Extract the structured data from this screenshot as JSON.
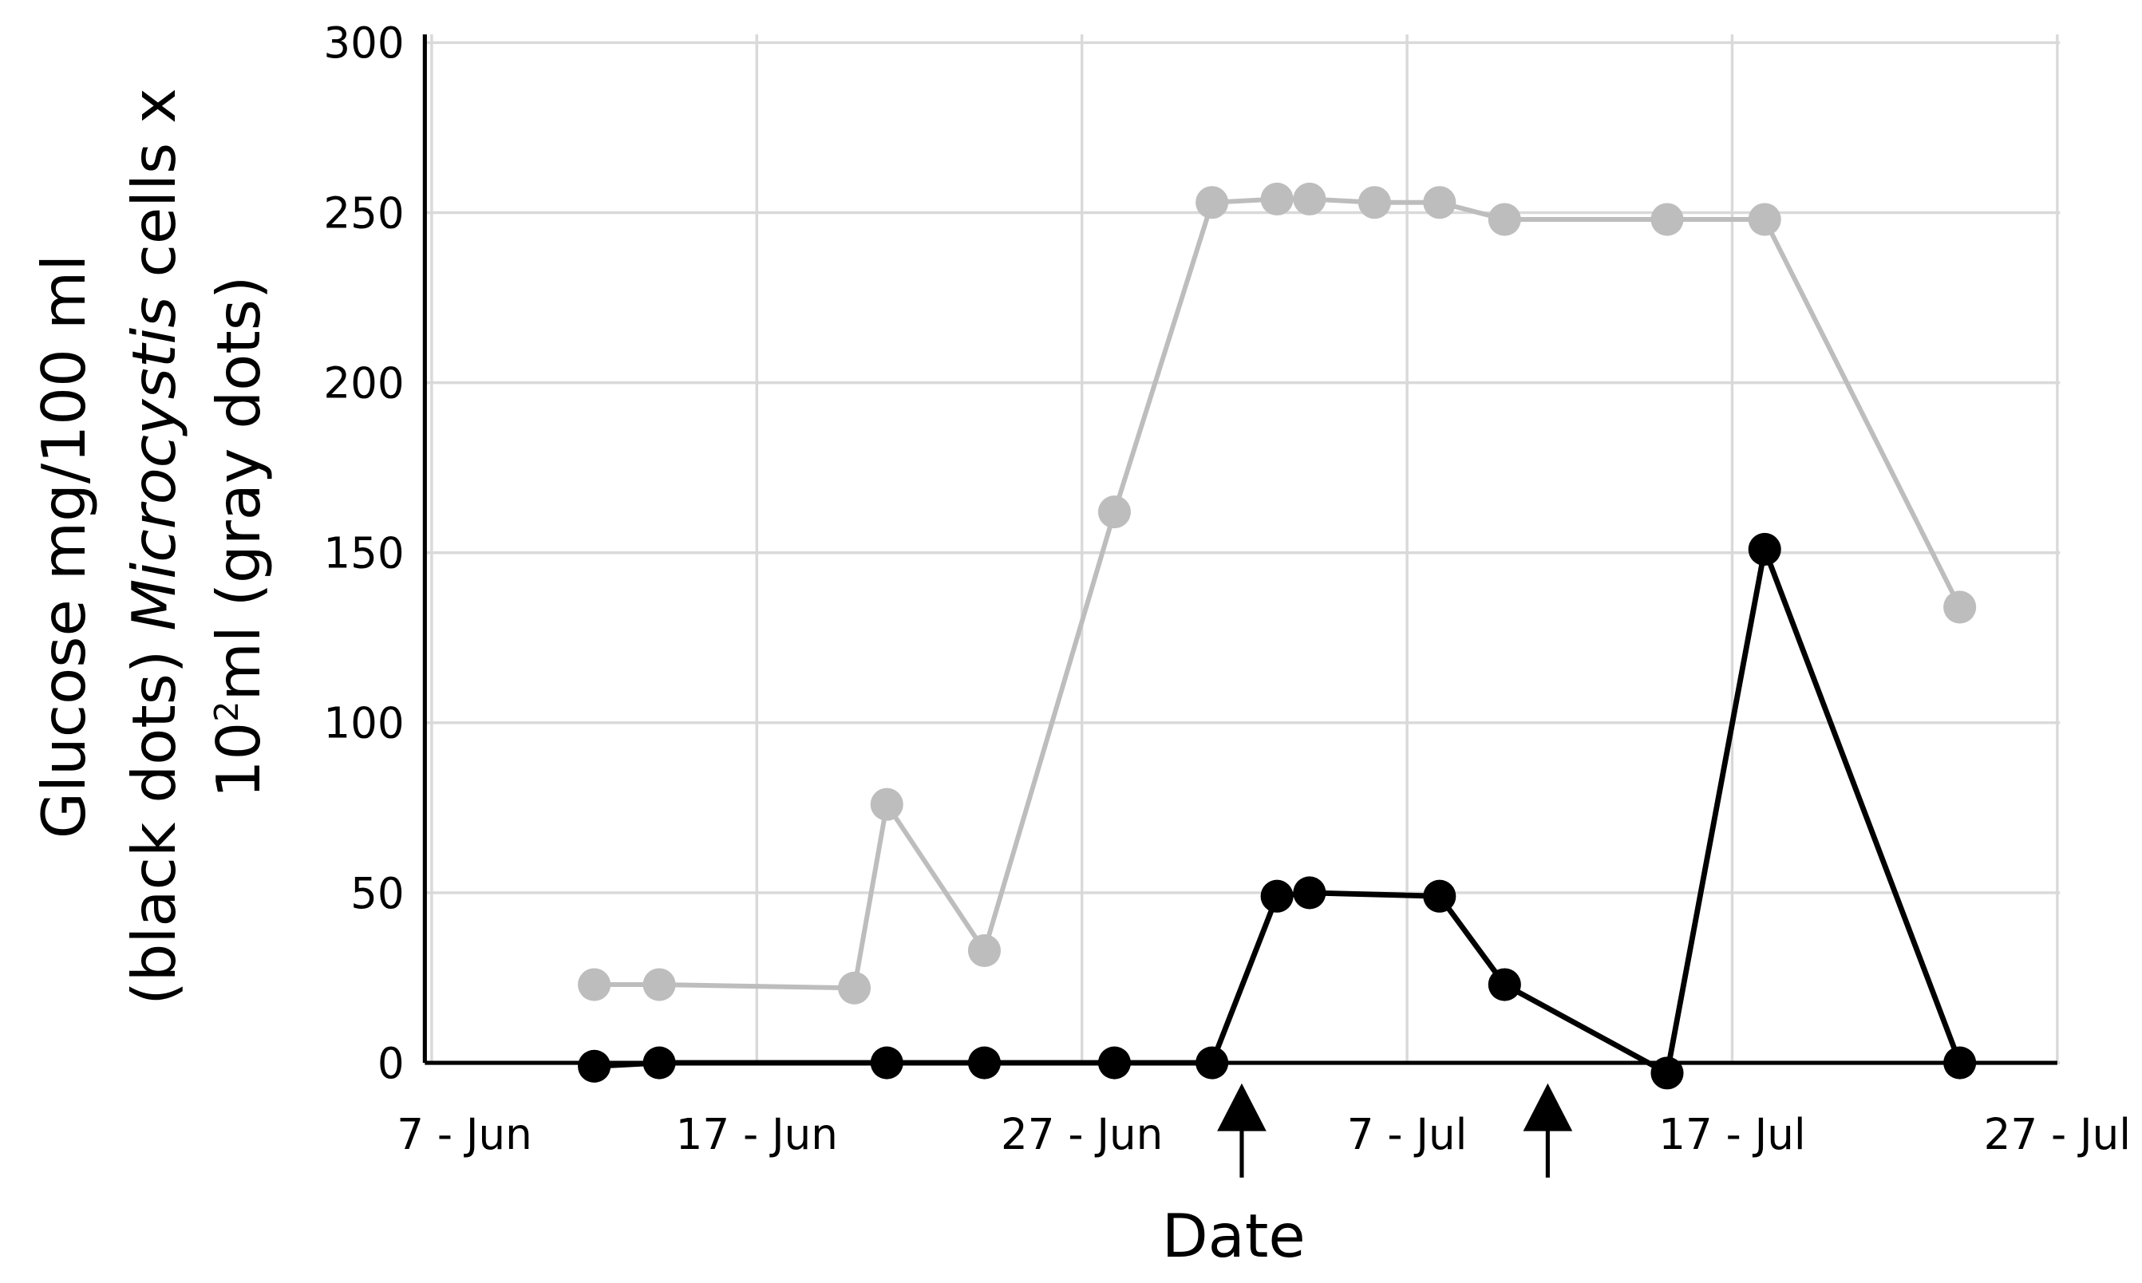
{
  "chart_data": {
    "type": "line",
    "xlabel": "Date",
    "ylabel": [
      "Glucose mg/100 ml",
      "(black dots)",
      "Microcystis",
      "cells x",
      "10",
      "2",
      "ml (gray dots)"
    ],
    "xlim": [
      "7 - Jun",
      "27 - Jul"
    ],
    "xticks": [
      "7 - Jun",
      "17 - Jun",
      "27 - Jun",
      "7 - Jul",
      "17 - Jul",
      "27 - Jul"
    ],
    "ylim": [
      0,
      300
    ],
    "yticks": [
      0,
      50,
      100,
      150,
      200,
      250,
      300
    ],
    "grid": true,
    "series": [
      {
        "color": "#bdbdbd",
        "x": [
          "12 - Jun",
          "14 - Jun",
          "20 - Jun",
          "21 - Jun",
          "24 - Jun",
          "28 - Jun",
          "1 - Jul",
          "3 - Jul",
          "4 - Jul",
          "6 - Jul",
          "8 - Jul",
          "10 - Jul",
          "15 - Jul",
          "18 - Jul",
          "24 - Jul"
        ],
        "values": [
          23,
          23,
          22,
          76,
          33,
          162,
          253,
          254,
          254,
          253,
          253,
          248,
          248,
          248,
          134
        ]
      },
      {
        "color": "#000000",
        "x": [
          "12 - Jun",
          "14 - Jun",
          "21 - Jun",
          "24 - Jun",
          "28 - Jun",
          "1 - Jul",
          "3 - Jul",
          "4 - Jul",
          "8 - Jul",
          "10 - Jul",
          "15 - Jul",
          "18 - Jul",
          "24 - Jul"
        ],
        "values": [
          -1,
          0,
          0,
          0,
          0,
          0,
          49,
          50,
          49,
          23,
          -3,
          151,
          0
        ]
      }
    ]
  }
}
